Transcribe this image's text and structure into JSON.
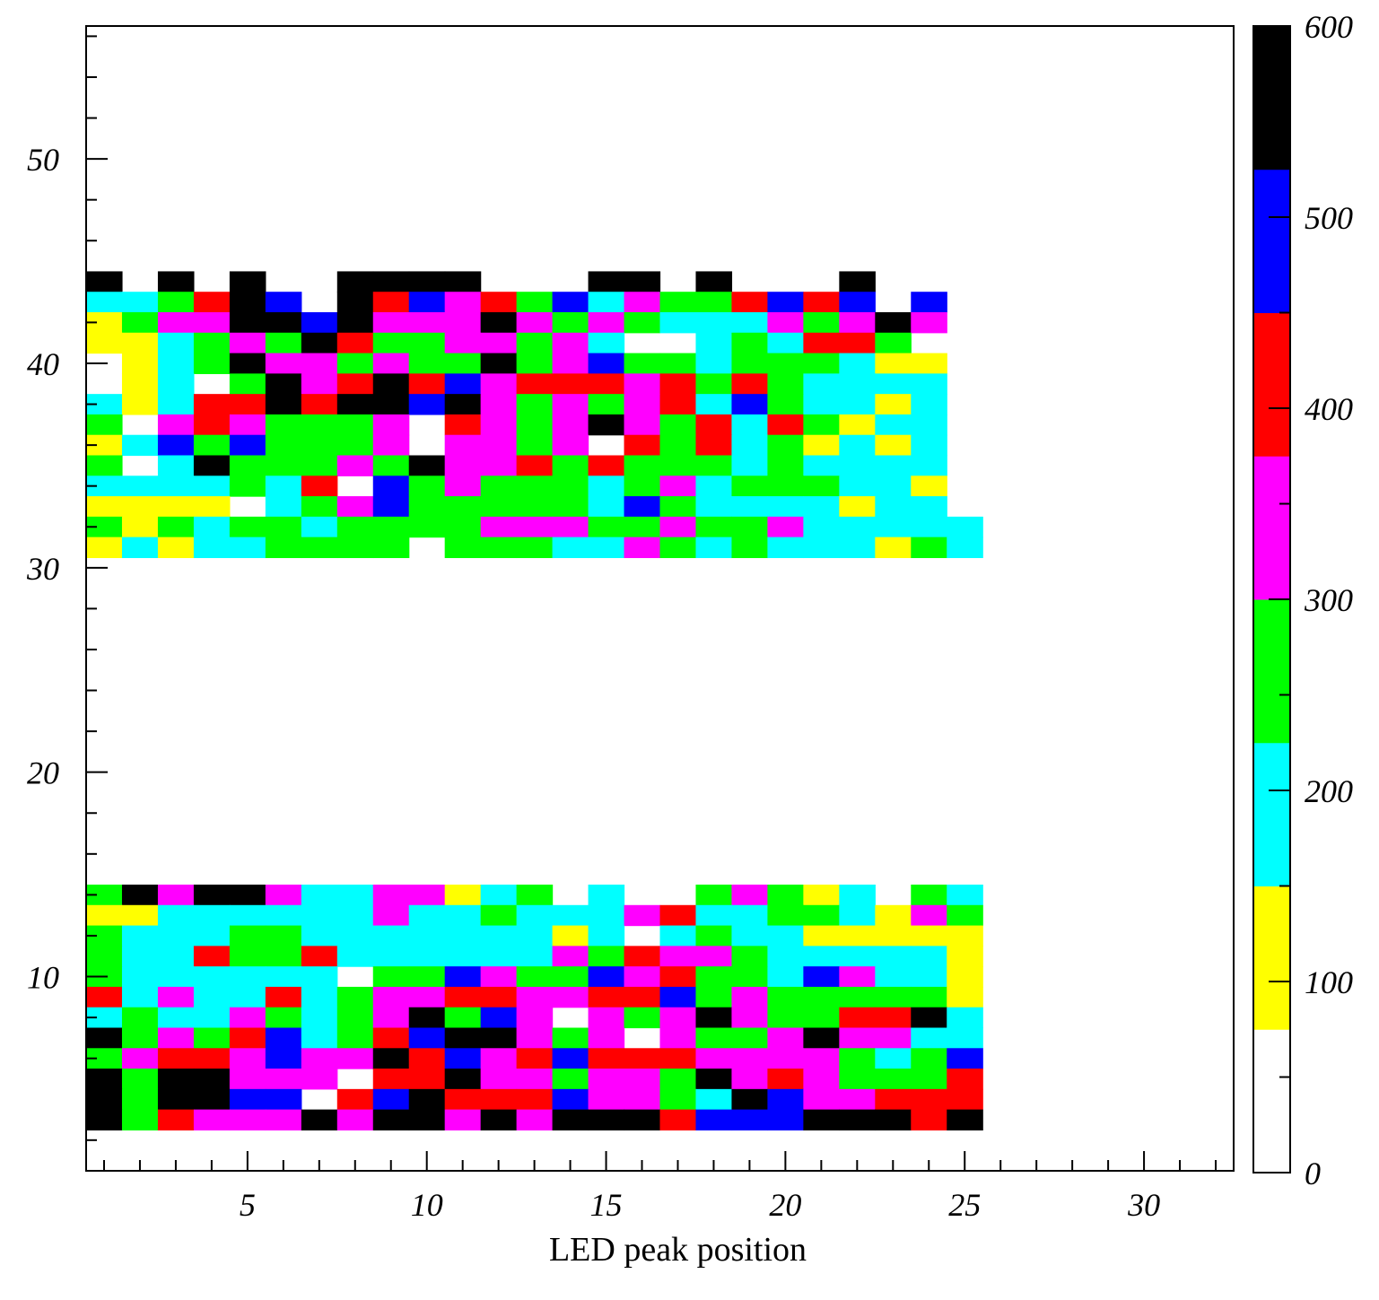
{
  "chart_data": {
    "type": "heatmap",
    "xlabel": "LED   peak position",
    "ylabel": "",
    "xlim": [
      0.5,
      32.5
    ],
    "ylim": [
      0.5,
      56.5
    ],
    "x_ticks": [
      "5",
      "10",
      "15",
      "20",
      "25",
      "30"
    ],
    "y_ticks": [
      "10",
      "20",
      "30",
      "40",
      "50"
    ],
    "colorbar": {
      "range": [
        0,
        600
      ],
      "tick_labels": [
        "0",
        "100",
        "200",
        "300",
        "400",
        "500",
        "600"
      ],
      "bands": [
        {
          "from": 0,
          "to": 75,
          "color": "#ffffff"
        },
        {
          "from": 75,
          "to": 150,
          "color": "#ffff00"
        },
        {
          "from": 150,
          "to": 225,
          "color": "#00ffff"
        },
        {
          "from": 225,
          "to": 300,
          "color": "#00ff00"
        },
        {
          "from": 300,
          "to": 375,
          "color": "#ff00ff"
        },
        {
          "from": 375,
          "to": 450,
          "color": "#ff0000"
        },
        {
          "from": 450,
          "to": 525,
          "color": "#0000ff"
        },
        {
          "from": 525,
          "to": 600,
          "color": "#000000"
        }
      ]
    },
    "level_legend": {
      "W": "0-75",
      "Y": "75-150",
      "C": "150-225",
      "G": "225-300",
      "M": "300-375",
      "R": "375-450",
      "B": "450-525",
      "K": "525-600"
    },
    "x_start": 1,
    "y_top": 44,
    "rows": [
      "KWKWKWWKKKKWWWKKWKWWWKWW",
      "CCGRKBWKRBMRGBCMGGRBRBWB",
      "YGMMKKBKMMMKMGMGCCCMGMKM",
      "YYCGMGKRGGMMGMCWWCGCRRGW",
      "WYCGKMMGMGGKGMBGGCGGGCYY",
      "WYCWGKMRKRBMRRRMRGRGCCCC",
      "CYCRRKRKKBKMGMGMRCBGCCYC",
      "GWMRMGGGMWRMGMKMGRCRGYCC",
      "YCBGBGGGMWMMGMWRGRCGYCYC",
      "GWCKGGGMGKMMRGRGGGCGCCCC",
      "CCCCGCRWBGMGGGCGMCGGGCCY",
      "YYYYWCGMBGGGGGCBGCCCCYCC",
      "GYGCGGCGGGGMMMGGMGGMCCCCC",
      "YCYCCGGGGWGGGCCMGCGCCCYGC",
      "",
      "",
      "",
      "",
      "",
      "",
      "",
      "",
      "",
      "",
      "",
      "",
      "",
      "",
      "",
      "",
      "GKMKKMCCMMYCGWCWWGMGYCWGC",
      "YYCCCCCCMCCGCCCMRCCGGCYMG",
      "GCCCGGCCCCCCCYCWCGCCYYYYY",
      "GCCRGGRCCCCCCMGRMMGCCCCCY",
      "GCCCCCCWGGBMGGBMRGGCBMCCY",
      "RCMCCRCGMMRRMMRRBGMGGGGGY",
      "CGCCMGCGMKGBMWMGMKMGGRRKC",
      "KGMGRBCGRBKKMGMWMGGMKMMCC",
      "GMRRMBMMKRBMRBRRRMMMMGCGB",
      "KGKKMMMWRRKMMGMMGKMRMGGGR",
      "KGKKBBWRBKRRRBMMGCKBMMRRR",
      "KGRMMMKMKKMKMKKKRBBBKKKRK"
    ]
  }
}
